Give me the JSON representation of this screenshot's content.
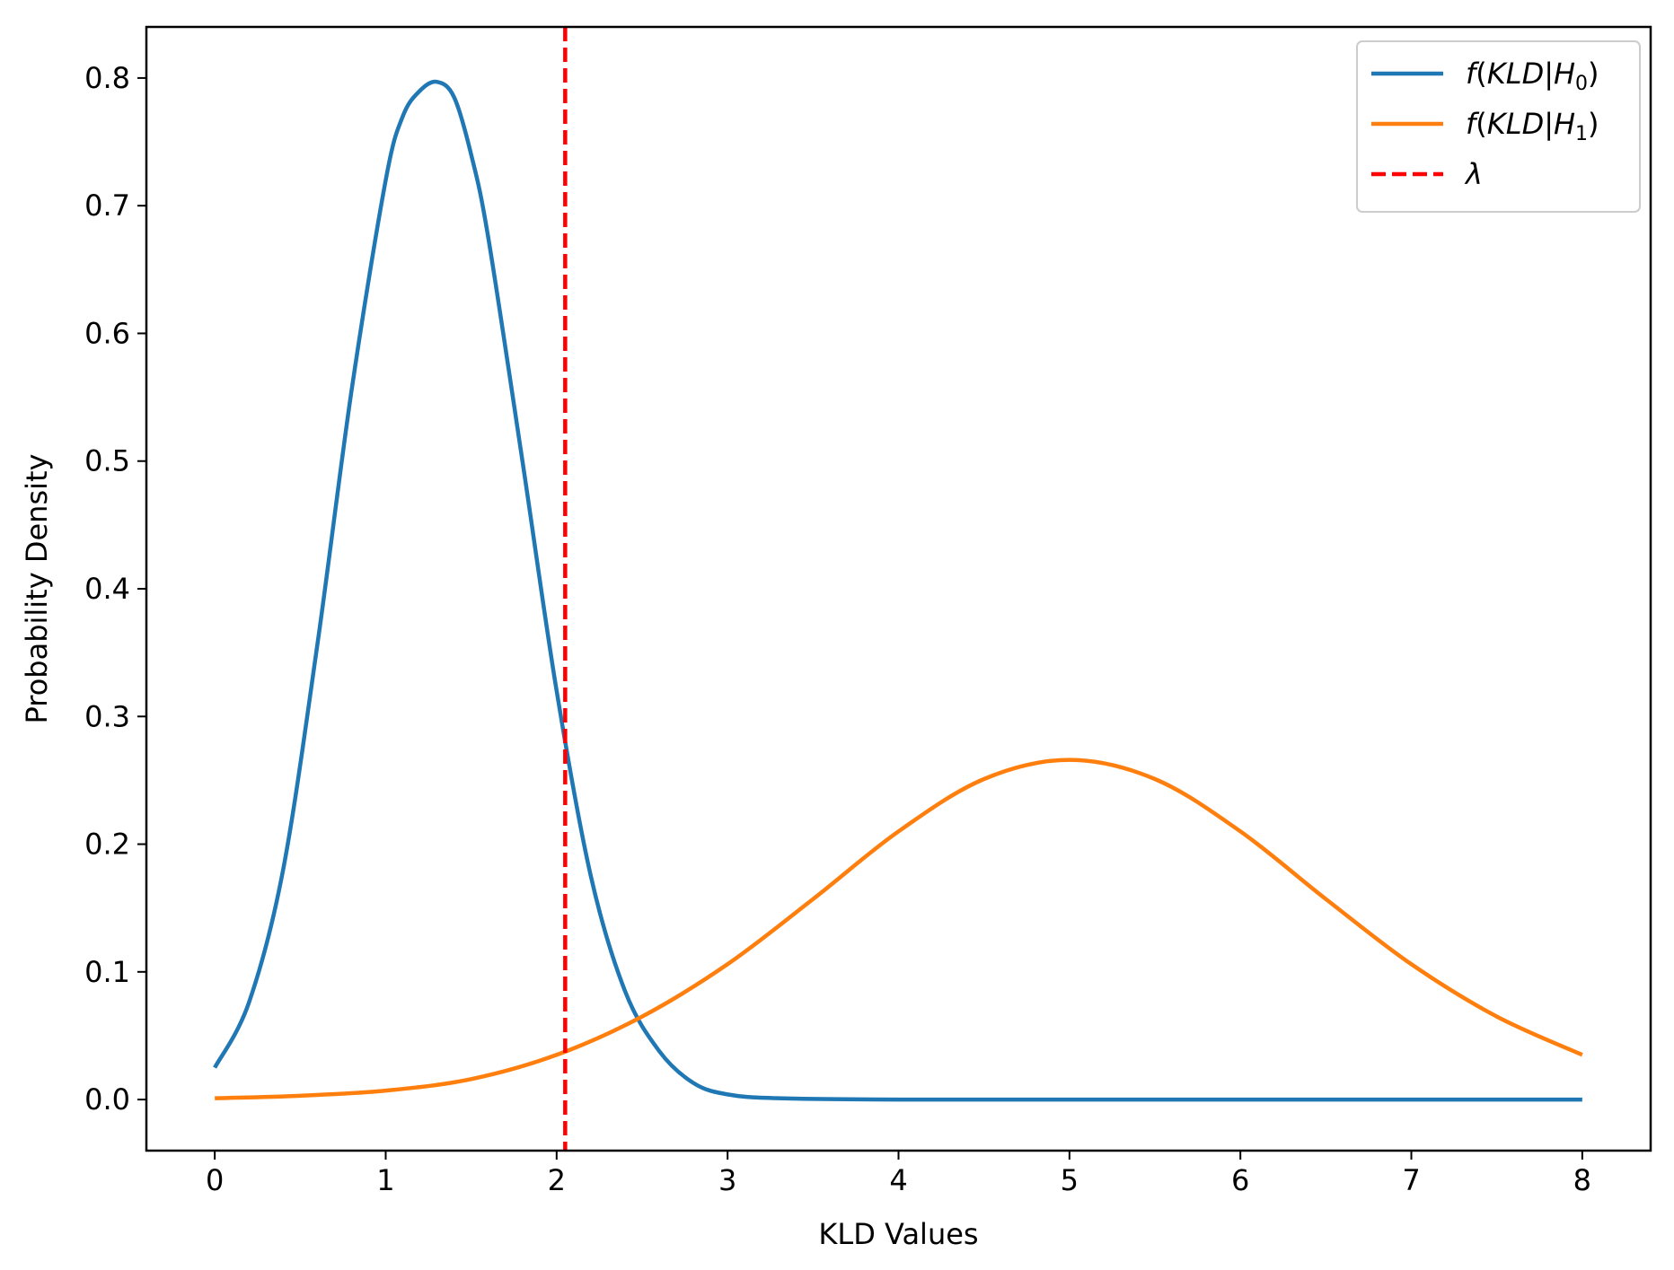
{
  "chart_data": {
    "type": "line",
    "title": "",
    "xlabel": "KLD Values",
    "ylabel": "Probability Density",
    "xlim": [
      -0.4,
      8.4
    ],
    "ylim": [
      -0.04,
      0.84
    ],
    "xticks": [
      0,
      1,
      2,
      3,
      4,
      5,
      6,
      7,
      8
    ],
    "xtick_labels": [
      "0",
      "1",
      "2",
      "3",
      "4",
      "5",
      "6",
      "7",
      "8"
    ],
    "yticks": [
      0.0,
      0.1,
      0.2,
      0.3,
      0.4,
      0.5,
      0.6,
      0.7,
      0.8
    ],
    "ytick_labels": [
      "0.0",
      "0.1",
      "0.2",
      "0.3",
      "0.4",
      "0.5",
      "0.6",
      "0.7",
      "0.8"
    ],
    "grid": false,
    "legend_position": "top-right",
    "series": [
      {
        "name": "f(KLD|H0)",
        "label_parts": {
          "main": "f(KLD|H",
          "sub": "0",
          "end": ")"
        },
        "color": "#1f77b4",
        "style": "solid",
        "x": [
          0,
          0.2,
          0.4,
          0.6,
          0.8,
          1.0,
          1.1,
          1.2,
          1.3,
          1.4,
          1.5,
          1.6,
          1.8,
          2.0,
          2.2,
          2.4,
          2.6,
          2.8,
          3.0,
          3.3,
          4.0,
          5.0,
          6.0,
          7.0,
          8.0
        ],
        "y": [
          0.025,
          0.076,
          0.18,
          0.356,
          0.555,
          0.72,
          0.77,
          0.79,
          0.797,
          0.785,
          0.74,
          0.675,
          0.5,
          0.32,
          0.175,
          0.085,
          0.038,
          0.013,
          0.004,
          0.001,
          0.0,
          0.0,
          0.0,
          0.0,
          0.0
        ]
      },
      {
        "name": "f(KLD|H1)",
        "label_parts": {
          "main": "f(KLD|H",
          "sub": "1",
          "end": ")"
        },
        "color": "#ff7f0e",
        "style": "solid",
        "x": [
          0,
          0.5,
          1.0,
          1.5,
          2.0,
          2.5,
          3.0,
          3.5,
          4.0,
          4.5,
          5.0,
          5.5,
          6.0,
          6.5,
          7.0,
          7.5,
          8.0
        ],
        "y": [
          0.001,
          0.003,
          0.007,
          0.016,
          0.035,
          0.065,
          0.106,
          0.157,
          0.21,
          0.251,
          0.266,
          0.251,
          0.21,
          0.157,
          0.106,
          0.065,
          0.035
        ]
      },
      {
        "name": "λ",
        "label_parts": {
          "main": "λ",
          "sub": "",
          "end": ""
        },
        "color": "#ff0000",
        "style": "dashed",
        "type": "vline",
        "x_value": 2.05
      }
    ]
  }
}
